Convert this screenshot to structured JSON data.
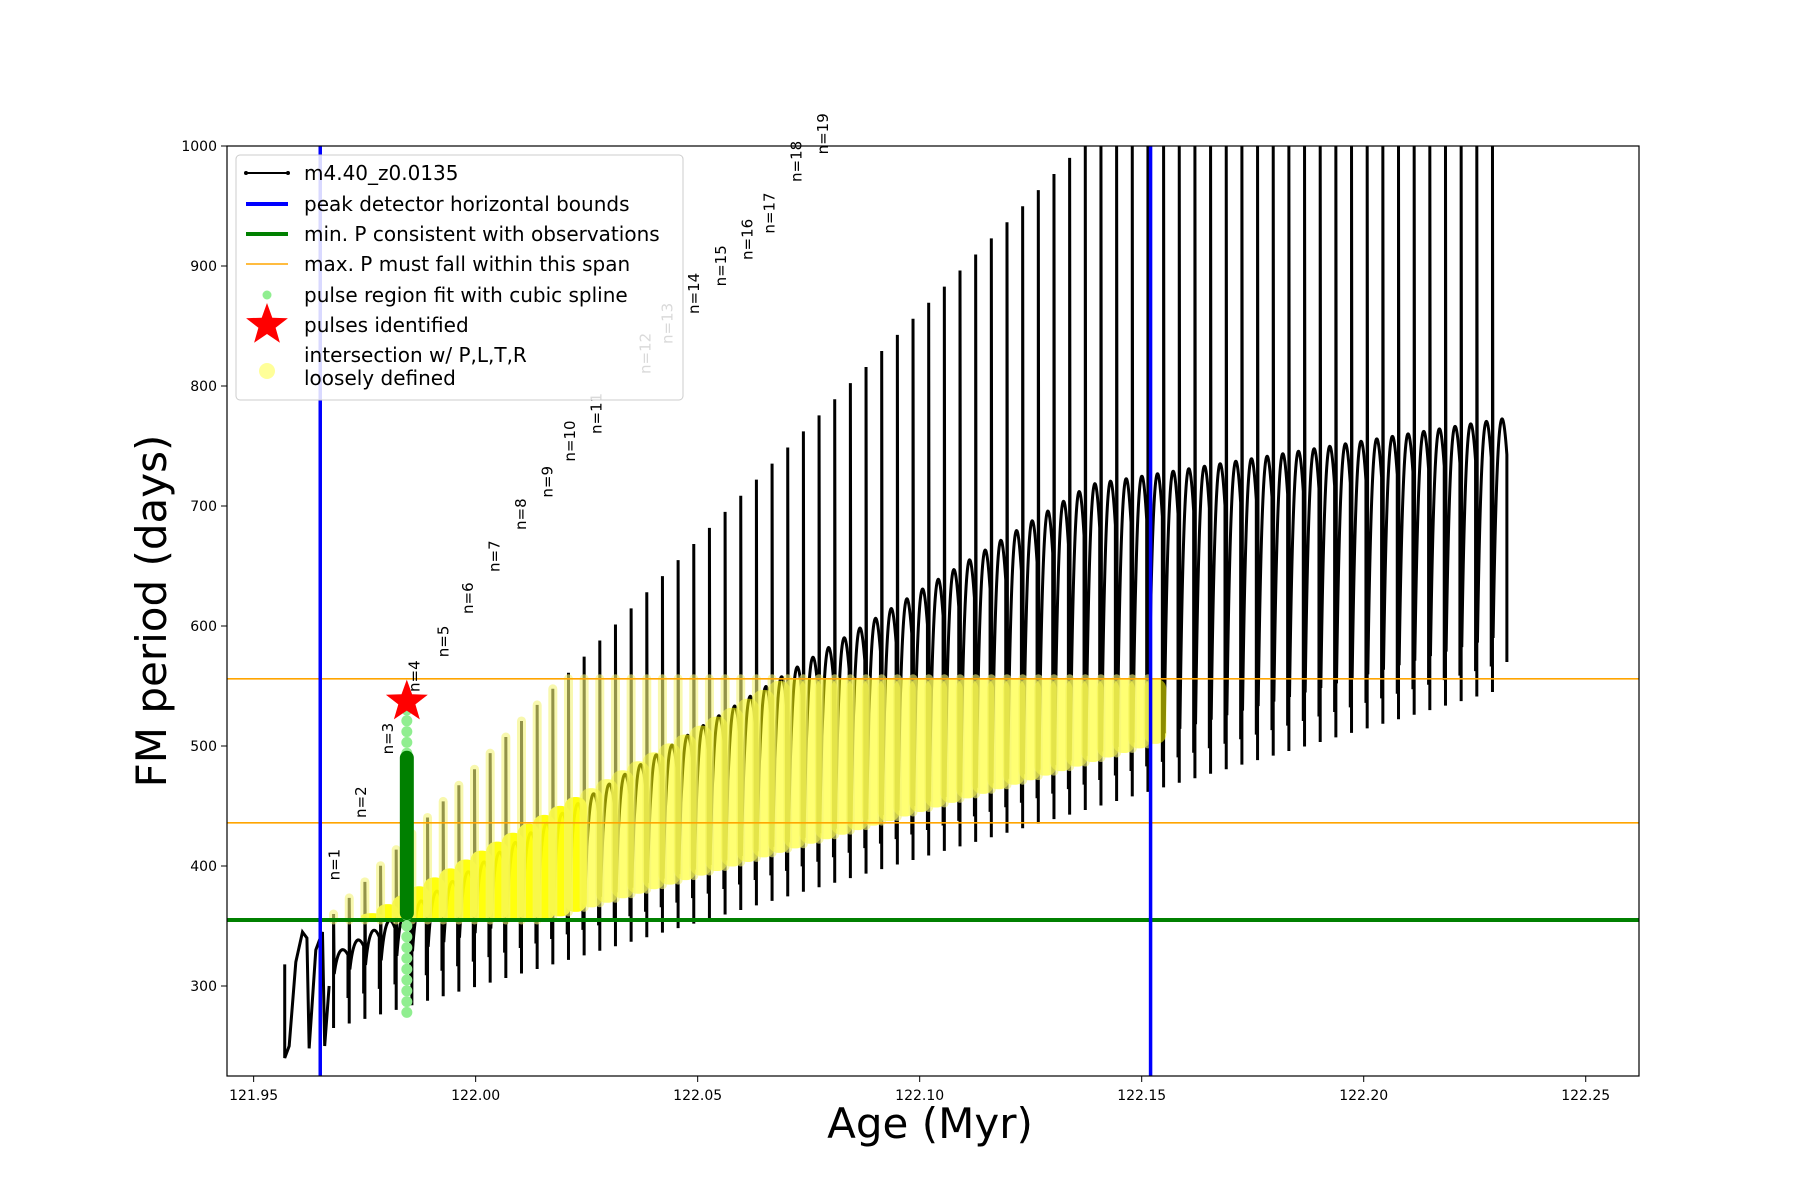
{
  "chart_data": {
    "type": "line",
    "title": "",
    "xlabel": "Age (Myr)",
    "ylabel": "FM period (days)",
    "xlim": [
      121.944,
      122.262
    ],
    "ylim": [
      225,
      1000
    ],
    "xticks": [
      121.95,
      122.0,
      122.05,
      122.1,
      122.15,
      122.2,
      122.25
    ],
    "xtick_labels": [
      "121.95",
      "122.00",
      "122.05",
      "122.10",
      "122.15",
      "122.20",
      "122.25"
    ],
    "yticks": [
      300,
      400,
      500,
      600,
      700,
      800,
      900,
      1000
    ],
    "ytick_labels": [
      "300",
      "400",
      "500",
      "600",
      "700",
      "800",
      "900",
      "1000"
    ],
    "grid": false,
    "legend_position": "top-left",
    "legend": [
      {
        "label": "m4.40_z0.0135",
        "marker": "line-dot",
        "color": "#000000"
      },
      {
        "label": "peak detector horizontal bounds",
        "marker": "line",
        "color": "#0000ff"
      },
      {
        "label": "min. P consistent with observations",
        "marker": "line",
        "color": "#008000"
      },
      {
        "label": "max. P must fall within this span",
        "marker": "thin-line",
        "color": "#ffa500"
      },
      {
        "label": "pulse region fit with cubic spline",
        "marker": "dot",
        "color": "#90ee90"
      },
      {
        "label": "pulses identified",
        "marker": "star",
        "color": "#ff0000"
      },
      {
        "label": "intersection w/ P,L,T,R",
        "label2": "loosely defined",
        "marker": "circle",
        "color": "#ffff99"
      }
    ],
    "vlines": [
      {
        "x": 121.965,
        "color": "#0000ff"
      },
      {
        "x": 122.152,
        "color": "#0000ff"
      }
    ],
    "hlines": [
      {
        "y": 355,
        "color": "#008000",
        "kind": "min"
      },
      {
        "y": 556,
        "color": "#ffa500",
        "kind": "max-upper"
      },
      {
        "y": 436,
        "color": "#ffa500",
        "kind": "max-lower"
      }
    ],
    "pulses": {
      "x_start": 121.968,
      "x_end": 122.229,
      "count": 75,
      "base_start": 305,
      "base_end": 585,
      "peak_start": 360,
      "peak_end": 1000,
      "cap": 1000
    },
    "pulse_labels": [
      {
        "n": "n=1",
        "x": 121.968,
        "y": 388
      },
      {
        "n": "n=2",
        "x": 121.974,
        "y": 440
      },
      {
        "n": "n=3",
        "x": 121.98,
        "y": 493
      },
      {
        "n": "n=4",
        "x": 121.986,
        "y": 545
      },
      {
        "n": "n=5",
        "x": 121.9925,
        "y": 574
      },
      {
        "n": "n=6",
        "x": 121.998,
        "y": 610
      },
      {
        "n": "n=7",
        "x": 122.004,
        "y": 645
      },
      {
        "n": "n=8",
        "x": 122.01,
        "y": 680
      },
      {
        "n": "n=9",
        "x": 122.016,
        "y": 707
      },
      {
        "n": "n=10",
        "x": 122.021,
        "y": 737
      },
      {
        "n": "n=11",
        "x": 122.027,
        "y": 760
      },
      {
        "n": "n=12",
        "x": 122.038,
        "y": 810
      },
      {
        "n": "n=13",
        "x": 122.043,
        "y": 835
      },
      {
        "n": "n=14",
        "x": 122.049,
        "y": 860
      },
      {
        "n": "n=15",
        "x": 122.055,
        "y": 883
      },
      {
        "n": "n=16",
        "x": 122.061,
        "y": 905
      },
      {
        "n": "n=17",
        "x": 122.066,
        "y": 927
      },
      {
        "n": "n=18",
        "x": 122.072,
        "y": 970
      },
      {
        "n": "n=19",
        "x": 122.078,
        "y": 993
      }
    ],
    "identified_pulse": {
      "x": 121.9845,
      "y": 537
    },
    "spline_fit": {
      "x": 121.9845,
      "y_min": 278,
      "y_max": 536
    },
    "green_fit": {
      "x": 121.9845,
      "y_min": 355,
      "y_max": 496
    }
  }
}
